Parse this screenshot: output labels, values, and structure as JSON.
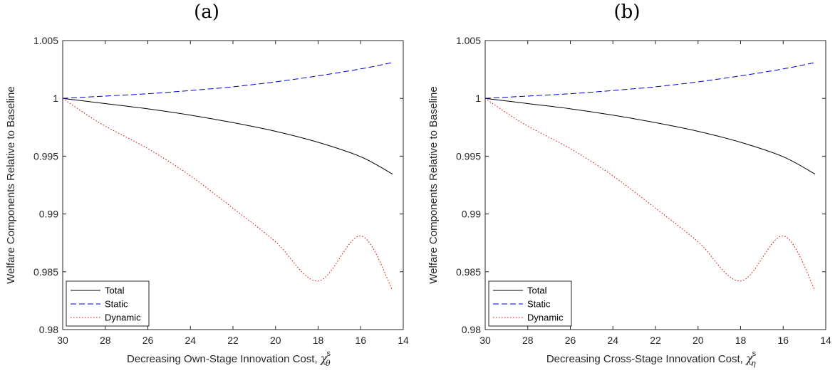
{
  "chart_data": [
    {
      "type": "line",
      "panel_label": "(a)",
      "xlabel": "Decreasing Own-Stage Innovation Cost, ",
      "x_symbol": "χ",
      "x_symbol_sup": "s",
      "x_symbol_sub": "θ",
      "ylabel": "Welfare Components Relative to Baseline",
      "xlim": [
        30,
        14
      ],
      "x_reversed": true,
      "ylim": [
        0.98,
        1.005
      ],
      "xticks": [
        "30",
        "28",
        "26",
        "24",
        "22",
        "20",
        "18",
        "16",
        "14"
      ],
      "yticks": [
        "0.98",
        "0.985",
        "0.99",
        "0.995",
        "1",
        "1.005"
      ],
      "legend_position": "bottom-left",
      "series": [
        {
          "name": "Total",
          "color": "#000000",
          "style": "solid",
          "x": [
            30,
            28,
            26,
            24,
            22,
            20,
            18,
            16,
            14.5
          ],
          "y": [
            1.0,
            0.99955,
            0.9991,
            0.99855,
            0.9979,
            0.99715,
            0.9962,
            0.99495,
            0.99345
          ]
        },
        {
          "name": "Static",
          "color": "#0000cc",
          "style": "dashed",
          "x": [
            30,
            28,
            26,
            24,
            22,
            20,
            18,
            16,
            14.5
          ],
          "y": [
            1.0,
            1.0002,
            1.0004,
            1.00068,
            1.001,
            1.00143,
            1.00195,
            1.00255,
            1.0031
          ]
        },
        {
          "name": "Dynamic",
          "color": "#dd0000",
          "style": "dotted",
          "x": [
            30,
            29,
            28,
            26,
            24,
            22,
            20,
            18,
            16,
            14.5
          ],
          "y": [
            1.0,
            0.99875,
            0.9976,
            0.99565,
            0.9933,
            0.9905,
            0.9876,
            0.9842,
            0.9872,
            0.9834
          ]
        }
      ]
    },
    {
      "type": "line",
      "panel_label": "(b)",
      "xlabel": "Decreasing Cross-Stage Innovation Cost, ",
      "x_symbol": "χ",
      "x_symbol_sup": "s",
      "x_symbol_sub": "η",
      "ylabel": "Welfare Components Relative to Baseline",
      "xlim": [
        30,
        14
      ],
      "x_reversed": true,
      "ylim": [
        0.98,
        1.005
      ],
      "xticks": [
        "30",
        "28",
        "26",
        "24",
        "22",
        "20",
        "18",
        "16",
        "14"
      ],
      "yticks": [
        "0.98",
        "0.985",
        "0.99",
        "0.995",
        "1",
        "1.005"
      ],
      "legend_position": "bottom-left",
      "series": [
        {
          "name": "Total",
          "color": "#000000",
          "style": "solid",
          "x": [
            30,
            28,
            26,
            24,
            22,
            20,
            18,
            16,
            14.5
          ],
          "y": [
            1.0,
            0.99955,
            0.9991,
            0.99855,
            0.9979,
            0.99715,
            0.9962,
            0.99495,
            0.99345
          ]
        },
        {
          "name": "Static",
          "color": "#0000cc",
          "style": "dashed",
          "x": [
            30,
            28,
            26,
            24,
            22,
            20,
            18,
            16,
            14.5
          ],
          "y": [
            1.0,
            1.0002,
            1.0004,
            1.00068,
            1.001,
            1.00143,
            1.00195,
            1.00255,
            1.0031
          ]
        },
        {
          "name": "Dynamic",
          "color": "#dd0000",
          "style": "dotted",
          "x": [
            30,
            29,
            28,
            26,
            24,
            22,
            20,
            18,
            16,
            14.5
          ],
          "y": [
            1.0,
            0.99875,
            0.9976,
            0.99565,
            0.9933,
            0.9905,
            0.9876,
            0.9842,
            0.9872,
            0.9834
          ]
        }
      ]
    }
  ]
}
